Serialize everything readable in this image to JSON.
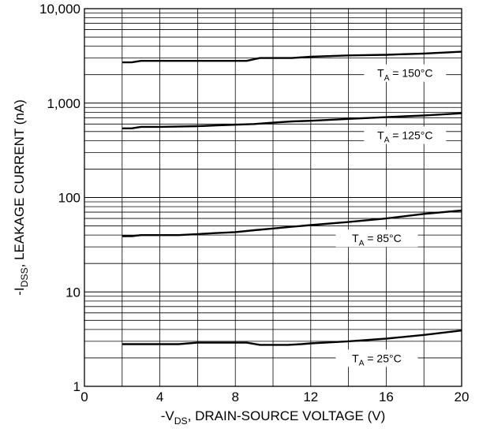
{
  "chart_data": {
    "type": "line",
    "title": "",
    "xlabel": "-V_DS, DRAIN-SOURCE VOLTAGE (V)",
    "ylabel": "-I_DSS, LEAKAGE CURRENT (nA)",
    "xlim": [
      0,
      20
    ],
    "ylim": [
      1,
      10000
    ],
    "yscale": "log",
    "grid": true,
    "x_ticks": [
      0,
      4,
      8,
      12,
      16,
      20
    ],
    "x_tick_labels": [
      "0",
      "4",
      "8",
      "12",
      "16",
      "20"
    ],
    "y_ticks": [
      1,
      10,
      100,
      1000,
      10000
    ],
    "y_tick_labels": [
      "1",
      "10",
      "100",
      "1,000",
      "10,000"
    ],
    "series": [
      {
        "name": "T_A = 150°C",
        "x": [
          2,
          2.5,
          3,
          4,
          6,
          8,
          8.6,
          9.3,
          10,
          11,
          12,
          14,
          16,
          18,
          20
        ],
        "values": [
          2700,
          2700,
          2800,
          2800,
          2800,
          2800,
          2800,
          3000,
          3000,
          3000,
          3100,
          3200,
          3250,
          3350,
          3500
        ],
        "label_at_x": 17
      },
      {
        "name": "T_A = 125°C",
        "x": [
          2,
          2.5,
          3,
          4,
          6,
          7,
          8,
          9,
          10,
          11,
          12,
          14,
          16,
          18,
          20
        ],
        "values": [
          540,
          540,
          560,
          560,
          570,
          580,
          590,
          600,
          620,
          640,
          650,
          680,
          710,
          740,
          780
        ],
        "label_at_x": 17
      },
      {
        "name": "T_A = 85°C",
        "x": [
          2,
          2.5,
          3,
          4,
          5,
          6,
          7,
          8,
          9,
          10,
          11,
          12,
          14,
          16,
          18,
          20
        ],
        "values": [
          39,
          39,
          40,
          40,
          40,
          41,
          42,
          43,
          45,
          47,
          49,
          51,
          55,
          60,
          67,
          73
        ],
        "label_at_x": 15.5
      },
      {
        "name": "T_A = 25°C",
        "x": [
          2,
          3,
          4,
          5,
          6,
          7,
          8,
          8.6,
          9.3,
          10,
          10.8,
          11.5,
          12,
          14,
          16,
          18,
          20
        ],
        "values": [
          2.8,
          2.8,
          2.8,
          2.8,
          2.9,
          2.9,
          2.9,
          2.9,
          2.75,
          2.75,
          2.75,
          2.8,
          2.85,
          3.0,
          3.2,
          3.5,
          3.9
        ],
        "label_at_x": 15.5
      }
    ]
  }
}
